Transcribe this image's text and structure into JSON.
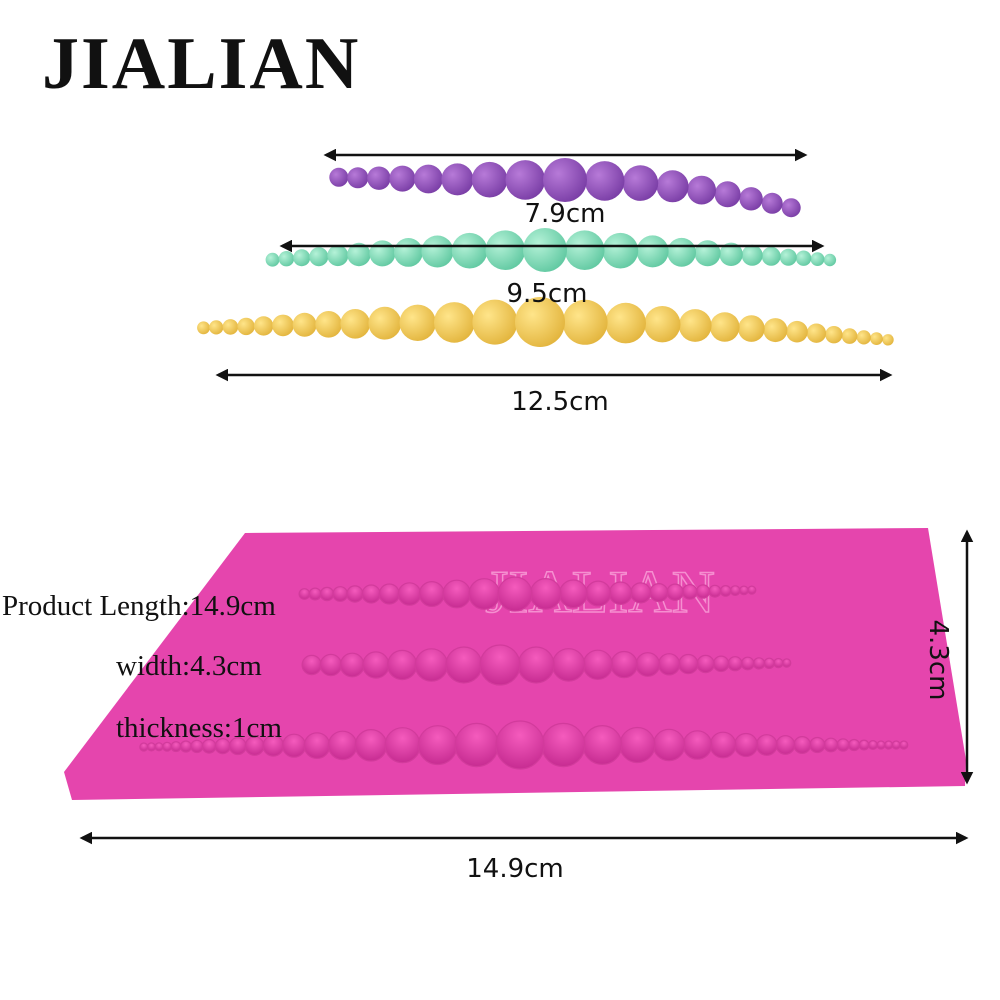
{
  "brand": "JIALIAN",
  "strands": [
    {
      "label": "7.9cm"
    },
    {
      "label": "9.5cm"
    },
    {
      "label": "12.5cm"
    }
  ],
  "mold": {
    "watermark": "JIALIAN",
    "specs": [
      "Product Length:14.9cm",
      "width:4.3cm",
      "thickness:1cm"
    ],
    "length_label": "14.9cm",
    "width_label": "4.3cm"
  }
}
